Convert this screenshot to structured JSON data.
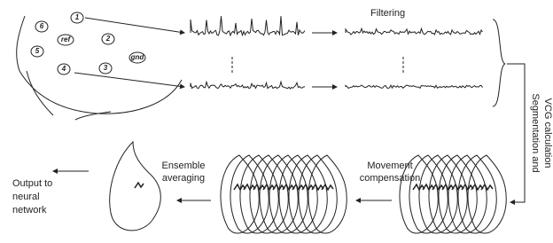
{
  "electrodes": [
    "1",
    "2",
    "3",
    "4",
    "5",
    "6",
    "ref",
    "gnd"
  ],
  "filtering": "Filtering",
  "segmentation": [
    "Segmentation and",
    "VCG calculation"
  ],
  "movement": [
    "Movement",
    "compensation"
  ],
  "ensemble": [
    "Ensemble",
    "averaging"
  ],
  "output": [
    "Output to",
    "neural",
    "network"
  ]
}
